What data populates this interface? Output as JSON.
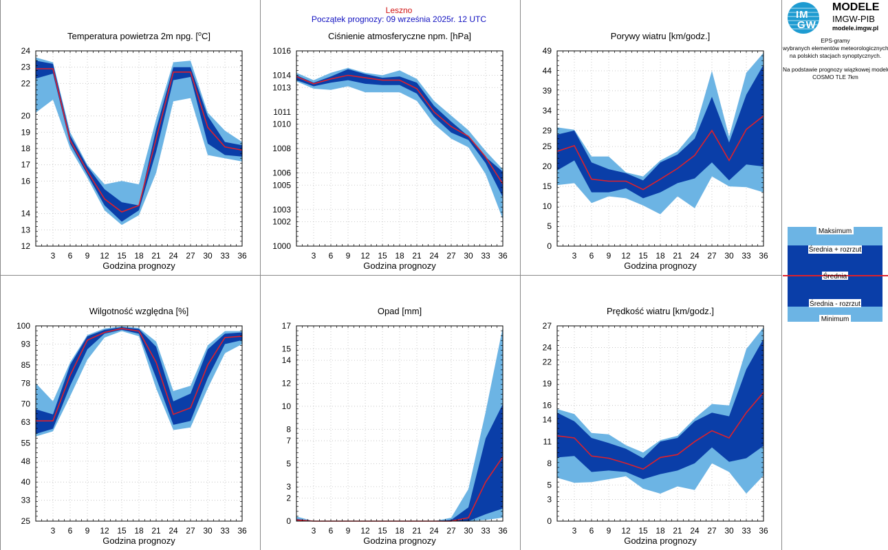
{
  "header": {
    "station": "Leszno",
    "forecast_start": "Początek prognozy: 09 września 2025r. 12 UTC"
  },
  "logo": {
    "mark_top": "IM",
    "mark_bottom": "GW",
    "title": "MODELE",
    "subtitle": "IMGW-PIB",
    "url": "modele.imgw.pl"
  },
  "description": {
    "line1": "EPS-gramy",
    "line2": "wybranych elementów meteorologicznych",
    "line3": "na polskich stacjach  synoptycznych.",
    "line4": "Na podstawie prognozy wiązkowej modelu",
    "line5": "COSMO TLE 7km"
  },
  "legend": {
    "labels": [
      "Maksimum",
      "Średnia + rozrzut",
      "Średnia",
      "Średnia - rozrzut",
      "Minimum"
    ]
  },
  "colors": {
    "outer_band": "#6cb4e4",
    "inner_band": "#0a3ea8",
    "mean_line": "#e0202a",
    "title_red": "#d01010",
    "title_blue": "#1010c0"
  },
  "chart_data": [
    {
      "type": "area",
      "title": "Temperatura powietrza 2m npg. [°C]",
      "title_main": "Temperatura powietrza 2m npg. [",
      "title_sup": "o",
      "title_tail": "C]",
      "xlabel": "Godzina prognozy",
      "x": [
        0,
        3,
        6,
        9,
        12,
        15,
        18,
        21,
        24,
        27,
        30,
        33,
        36
      ],
      "x_ticks": [
        "3",
        "6",
        "9",
        "12",
        "15",
        "18",
        "21",
        "24",
        "27",
        "30",
        "33",
        "36"
      ],
      "y_ticks": [
        "12",
        "13",
        "14",
        "16",
        "17",
        "18",
        "19",
        "20",
        "22",
        "23",
        "24"
      ],
      "ylim": [
        12,
        24
      ],
      "series": [
        {
          "name": "Maksimum",
          "values": [
            23.6,
            23.3,
            19.0,
            17.0,
            15.8,
            16.0,
            15.8,
            19.8,
            23.3,
            23.4,
            20.2,
            19.1,
            18.4
          ]
        },
        {
          "name": "Średnia + rozrzut",
          "values": [
            23.4,
            23.2,
            18.8,
            16.9,
            15.5,
            14.7,
            14.5,
            19.2,
            23.0,
            23.0,
            20.0,
            18.4,
            18.2
          ]
        },
        {
          "name": "Średnia",
          "values": [
            22.9,
            22.9,
            18.5,
            16.6,
            14.9,
            14.1,
            14.5,
            18.6,
            22.7,
            22.7,
            19.3,
            18.1,
            17.9
          ]
        },
        {
          "name": "Średnia - rozrzut",
          "values": [
            22.3,
            22.6,
            18.3,
            16.4,
            14.5,
            13.5,
            14.2,
            17.8,
            22.2,
            22.4,
            18.3,
            17.6,
            17.5
          ]
        },
        {
          "name": "Minimum",
          "values": [
            20.2,
            21.0,
            18.0,
            16.2,
            14.2,
            13.3,
            13.9,
            16.5,
            20.9,
            21.1,
            17.6,
            17.4,
            17.2
          ]
        }
      ]
    },
    {
      "type": "area",
      "title": "Ciśnienie atmosferyczne npm. [hPa]",
      "xlabel": "Godzina prognozy",
      "x": [
        0,
        3,
        6,
        9,
        12,
        15,
        18,
        21,
        24,
        27,
        30,
        33,
        36
      ],
      "x_ticks": [
        "3",
        "6",
        "9",
        "12",
        "15",
        "18",
        "21",
        "24",
        "27",
        "30",
        "33",
        "36"
      ],
      "y_ticks": [
        "1000",
        "1002",
        "1003",
        "1005",
        "1006",
        "1008",
        "1010",
        "1011",
        "1013",
        "1014",
        "1016"
      ],
      "ylim": [
        1000,
        1016
      ],
      "series": [
        {
          "name": "Maksimum",
          "values": [
            1014.2,
            1013.6,
            1014.2,
            1014.6,
            1014.2,
            1014.0,
            1014.4,
            1013.7,
            1011.9,
            1010.7,
            1009.5,
            1007.8,
            1006.3
          ]
        },
        {
          "name": "Średnia + rozrzut",
          "values": [
            1014.0,
            1013.4,
            1013.9,
            1014.5,
            1014.1,
            1013.8,
            1013.9,
            1013.4,
            1011.5,
            1010.2,
            1009.0,
            1007.3,
            1006.1
          ]
        },
        {
          "name": "Średnia",
          "values": [
            1013.9,
            1013.3,
            1013.7,
            1014.0,
            1013.8,
            1013.6,
            1013.6,
            1012.9,
            1011.0,
            1009.8,
            1009.0,
            1007.3,
            1005.1
          ]
        },
        {
          "name": "Średnia - rozrzut",
          "values": [
            1013.6,
            1013.1,
            1013.4,
            1013.6,
            1013.3,
            1013.2,
            1013.2,
            1012.5,
            1010.6,
            1009.3,
            1008.7,
            1006.8,
            1004.0
          ]
        },
        {
          "name": "Minimum",
          "values": [
            1013.5,
            1012.9,
            1012.8,
            1013.1,
            1012.6,
            1012.6,
            1012.6,
            1011.9,
            1010.0,
            1008.8,
            1008.1,
            1005.9,
            1002.2
          ]
        }
      ]
    },
    {
      "type": "area",
      "title": "Porywy wiatru [km/godz.]",
      "xlabel": "Godzina prognozy",
      "x": [
        0,
        3,
        6,
        9,
        12,
        15,
        18,
        21,
        24,
        27,
        30,
        33,
        36
      ],
      "x_ticks": [
        "3",
        "6",
        "9",
        "12",
        "15",
        "18",
        "21",
        "24",
        "27",
        "30",
        "33",
        "36"
      ],
      "y_ticks": [
        "0",
        "5",
        "10",
        "15",
        "20",
        "25",
        "29",
        "34",
        "39",
        "44",
        "49"
      ],
      "ylim": [
        0,
        49
      ],
      "series": [
        {
          "name": "Maksimum",
          "values": [
            29.8,
            29.2,
            22.5,
            22.5,
            18.5,
            17.5,
            21.5,
            23.8,
            29.0,
            44.0,
            27.5,
            43.5,
            48.5
          ]
        },
        {
          "name": "Średnia + rozrzut",
          "values": [
            28.0,
            29.0,
            21.0,
            19.3,
            18.3,
            16.5,
            21.0,
            23.0,
            27.0,
            37.5,
            26.0,
            38.0,
            45.5
          ]
        },
        {
          "name": "Średnia",
          "values": [
            23.8,
            25.2,
            16.8,
            16.3,
            16.3,
            14.2,
            16.8,
            19.5,
            22.8,
            29.0,
            21.5,
            29.3,
            32.7
          ]
        },
        {
          "name": "Średnia - rozrzut",
          "values": [
            19.0,
            21.5,
            13.5,
            13.5,
            14.5,
            12.0,
            13.5,
            15.8,
            17.0,
            21.0,
            16.5,
            20.5,
            20.0
          ]
        },
        {
          "name": "Minimum",
          "values": [
            15.3,
            15.8,
            10.8,
            12.5,
            12.0,
            10.2,
            8.0,
            12.5,
            9.5,
            17.5,
            15.0,
            14.8,
            13.5
          ]
        }
      ]
    },
    {
      "type": "area",
      "title": "Wilgotność względna [%]",
      "xlabel": "Godzina prognozy",
      "x": [
        0,
        3,
        6,
        9,
        12,
        15,
        18,
        21,
        24,
        27,
        30,
        33,
        36
      ],
      "x_ticks": [
        "3",
        "6",
        "9",
        "12",
        "15",
        "18",
        "21",
        "24",
        "27",
        "30",
        "33",
        "36"
      ],
      "y_ticks": [
        "25",
        "33",
        "40",
        "48",
        "55",
        "63",
        "70",
        "78",
        "85",
        "93",
        "100"
      ],
      "ylim": [
        25,
        100
      ],
      "series": [
        {
          "name": "Maksimum",
          "values": [
            78.0,
            71.0,
            86.0,
            96.5,
            99.0,
            99.8,
            99.2,
            94.0,
            75.0,
            77.0,
            92.5,
            98.0,
            98.0
          ]
        },
        {
          "name": "Średnia + rozrzut",
          "values": [
            68.0,
            66.0,
            85.0,
            96.0,
            98.5,
            99.5,
            98.8,
            92.0,
            71.0,
            74.0,
            91.0,
            97.0,
            97.5
          ]
        },
        {
          "name": "Średnia",
          "values": [
            63.5,
            63.5,
            81.0,
            94.5,
            97.5,
            99.0,
            98.0,
            86.0,
            66.0,
            68.5,
            85.0,
            95.5,
            96.0
          ]
        },
        {
          "name": "Średnia - rozrzut",
          "values": [
            58.5,
            60.5,
            77.0,
            91.0,
            97.0,
            98.5,
            97.0,
            80.0,
            62.0,
            63.5,
            80.0,
            93.0,
            94.5
          ]
        },
        {
          "name": "Minimum",
          "values": [
            57.5,
            59.5,
            73.0,
            87.0,
            95.5,
            98.0,
            96.0,
            76.0,
            60.0,
            61.0,
            76.0,
            89.5,
            93.0
          ]
        }
      ]
    },
    {
      "type": "area",
      "title": "Opad [mm]",
      "xlabel": "Godzina prognozy",
      "x": [
        0,
        3,
        6,
        9,
        12,
        15,
        18,
        21,
        24,
        27,
        30,
        33,
        36
      ],
      "x_ticks": [
        "3",
        "6",
        "9",
        "12",
        "15",
        "18",
        "21",
        "24",
        "27",
        "30",
        "33",
        "36"
      ],
      "y_ticks": [
        "0",
        "2",
        "3",
        "5",
        "7",
        "8",
        "10",
        "12",
        "14",
        "15",
        "17"
      ],
      "ylim": [
        0,
        17
      ],
      "series": [
        {
          "name": "Maksimum",
          "values": [
            0.4,
            0.0,
            0.0,
            0.0,
            0.0,
            0.0,
            0.0,
            0.0,
            0.0,
            0.3,
            2.8,
            9.5,
            16.9
          ]
        },
        {
          "name": "Średnia + rozrzut",
          "values": [
            0.2,
            0.0,
            0.0,
            0.0,
            0.0,
            0.0,
            0.0,
            0.0,
            0.0,
            0.1,
            1.2,
            7.2,
            10.2
          ]
        },
        {
          "name": "Średnia",
          "values": [
            0.1,
            0.0,
            0.0,
            0.0,
            0.0,
            0.0,
            0.0,
            0.0,
            0.0,
            0.0,
            0.3,
            3.4,
            5.6
          ]
        },
        {
          "name": "Średnia - rozrzut",
          "values": [
            0.0,
            0.0,
            0.0,
            0.0,
            0.0,
            0.0,
            0.0,
            0.0,
            0.0,
            0.0,
            0.0,
            0.6,
            1.1
          ]
        },
        {
          "name": "Minimum",
          "values": [
            0.0,
            0.0,
            0.0,
            0.0,
            0.0,
            0.0,
            0.0,
            0.0,
            0.0,
            0.0,
            0.0,
            0.1,
            0.3
          ]
        }
      ]
    },
    {
      "type": "area",
      "title": "Prędkość wiatru [km/godz.]",
      "xlabel": "Godzina prognozy",
      "x": [
        0,
        3,
        6,
        9,
        12,
        15,
        18,
        21,
        24,
        27,
        30,
        33,
        36
      ],
      "x_ticks": [
        "3",
        "6",
        "9",
        "12",
        "15",
        "18",
        "21",
        "24",
        "27",
        "30",
        "33",
        "36"
      ],
      "y_ticks": [
        "0",
        "3",
        "5",
        "8",
        "11",
        "14",
        "16",
        "19",
        "22",
        "24",
        "27"
      ],
      "ylim": [
        0,
        27
      ],
      "series": [
        {
          "name": "Maksimum",
          "values": [
            15.5,
            14.8,
            12.2,
            12.0,
            10.5,
            9.5,
            11.2,
            11.8,
            14.2,
            16.2,
            16.0,
            23.8,
            26.8
          ]
        },
        {
          "name": "Średnia + rozrzut",
          "values": [
            15.0,
            13.8,
            11.5,
            10.8,
            10.0,
            8.7,
            11.0,
            11.5,
            13.8,
            15.0,
            14.5,
            21.0,
            25.2
          ]
        },
        {
          "name": "Średnia",
          "values": [
            11.8,
            11.5,
            9.0,
            8.7,
            8.0,
            7.2,
            8.8,
            9.2,
            11.0,
            12.5,
            11.5,
            15.0,
            17.8
          ]
        },
        {
          "name": "Średnia - rozrzut",
          "values": [
            8.8,
            9.0,
            6.8,
            7.0,
            6.8,
            5.8,
            6.5,
            7.0,
            8.0,
            10.2,
            8.2,
            8.7,
            10.4
          ]
        },
        {
          "name": "Minimum",
          "values": [
            6.0,
            5.3,
            5.4,
            5.8,
            6.2,
            4.5,
            3.8,
            4.8,
            4.3,
            8.0,
            6.8,
            3.8,
            6.3
          ]
        }
      ]
    }
  ]
}
